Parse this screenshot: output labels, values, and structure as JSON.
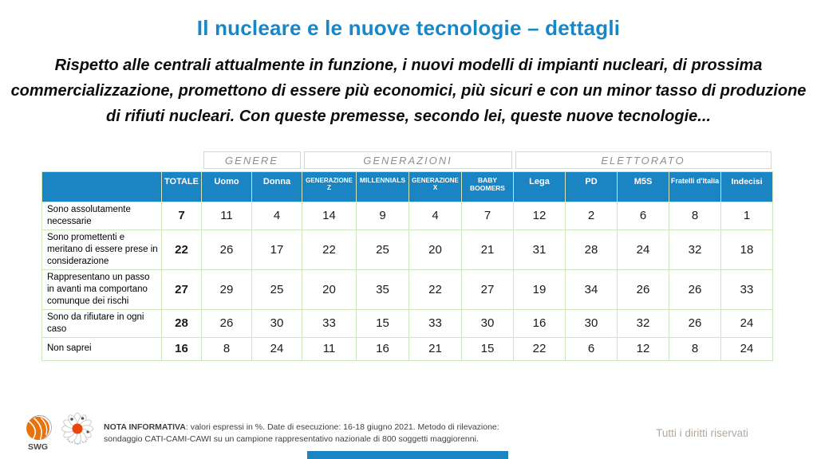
{
  "title": "Il nucleare e le nuove tecnologie – dettagli",
  "subtitle": "Rispetto alle centrali attualmente in funzione, i nuovi modelli di impianti nucleari, di prossima commercializzazione, promettono di essere più economici, più sicuri e con un minor tasso di produzione di rifiuti nucleari. Con queste premesse, secondo lei, queste nuove tecnologie...",
  "chart_data": {
    "type": "table",
    "title": "Il nucleare e le nuove tecnologie – dettagli",
    "unit": "valori espressi in %",
    "column_groups": [
      {
        "label": "GENERE",
        "span": 2
      },
      {
        "label": "GENERAZIONI",
        "span": 4
      },
      {
        "label": "ELETTORATO",
        "span": 5
      }
    ],
    "columns": [
      "TOTALE",
      "Uomo",
      "Donna",
      "GENERAZIONE Z",
      "MILLENNIALS",
      "GENERAZIONE X",
      "BABY BOOMERS",
      "Lega",
      "PD",
      "M5S",
      "Fratelli d'Italia",
      "Indecisi"
    ],
    "rows": [
      {
        "label": "Sono assolutamente necessarie",
        "values": [
          7,
          11,
          4,
          14,
          9,
          4,
          7,
          12,
          2,
          6,
          8,
          1
        ]
      },
      {
        "label": "Sono promettenti e meritano di essere prese in considerazione",
        "values": [
          22,
          26,
          17,
          22,
          25,
          20,
          21,
          31,
          28,
          24,
          32,
          18
        ]
      },
      {
        "label": "Rappresentano un passo in avanti ma comportano comunque dei rischi",
        "values": [
          27,
          29,
          25,
          20,
          35,
          22,
          27,
          19,
          34,
          26,
          26,
          33
        ]
      },
      {
        "label": "Sono da rifiutare in ogni caso",
        "values": [
          28,
          26,
          30,
          33,
          15,
          33,
          30,
          16,
          30,
          32,
          26,
          24
        ]
      },
      {
        "label": "Non saprei",
        "values": [
          16,
          8,
          24,
          11,
          16,
          21,
          15,
          22,
          6,
          12,
          8,
          24
        ]
      }
    ]
  },
  "footer": {
    "swg_label": "SWG",
    "note_label": "NOTA INFORMATIVA",
    "note_text": ": valori espressi in %. Date di esecuzione: 16-18 giugno 2021. Metodo di rilevazione: sondaggio CATI-CAMI-CAWI su un campione rappresentativo nazionale di 800 soggetti maggiorenni.",
    "rights": "Tutti i diritti riservati"
  },
  "colors": {
    "title_blue": "#1787c7",
    "header_blue": "#1b84c2",
    "table_border_green": "#cfe5bd",
    "group_label_gray": "#8f8f8f",
    "rights_gray": "#b5a89c",
    "logo_orange": "#e8720c"
  }
}
